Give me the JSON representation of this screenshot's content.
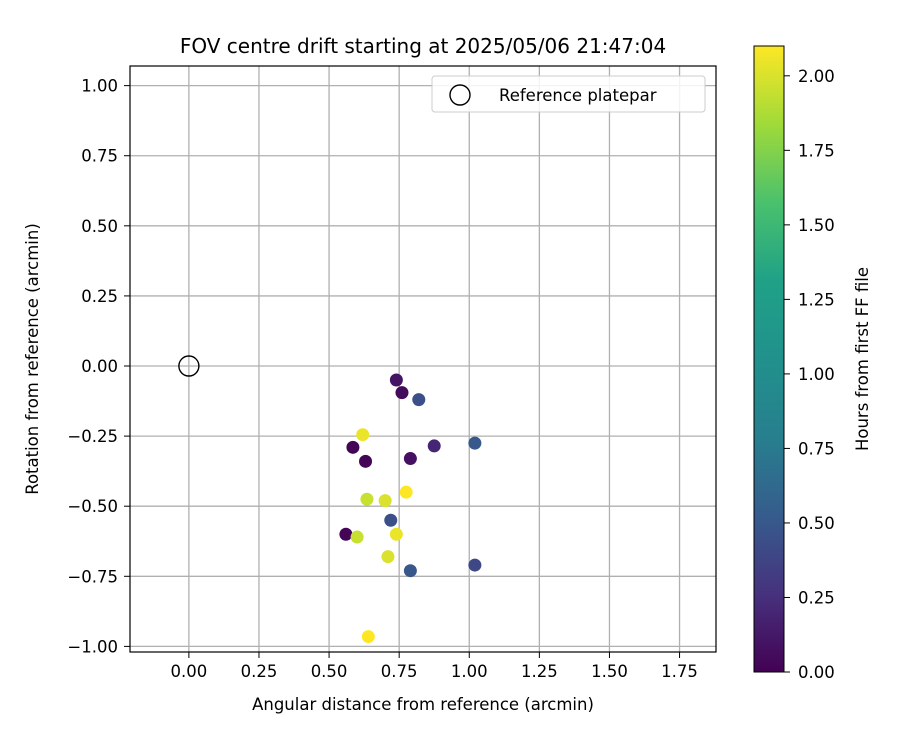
{
  "chart_data": {
    "type": "scatter",
    "title": "FOV centre drift starting at 2025/05/06 21:47:04",
    "xlabel": "Angular distance from reference (arcmin)",
    "ylabel": "Rotation from reference (arcmin)",
    "xlim": [
      -0.21,
      1.88
    ],
    "ylim": [
      -1.02,
      1.07
    ],
    "xticks": [
      0.0,
      0.25,
      0.5,
      0.75,
      1.0,
      1.25,
      1.5,
      1.75
    ],
    "xtick_labels": [
      "0.00",
      "0.25",
      "0.50",
      "0.75",
      "1.00",
      "1.25",
      "1.50",
      "1.75"
    ],
    "yticks": [
      -1.0,
      -0.75,
      -0.5,
      -0.25,
      0.0,
      0.25,
      0.5,
      0.75,
      1.0
    ],
    "ytick_labels": [
      "−1.00",
      "−0.75",
      "−0.50",
      "−0.25",
      "0.00",
      "0.25",
      "0.50",
      "0.75",
      "1.00"
    ],
    "grid": true,
    "legend": {
      "position": "top-right",
      "entries": [
        {
          "label": "Reference platepar",
          "marker": "open-circle"
        }
      ]
    },
    "reference_point": {
      "x": 0.0,
      "y": 0.0
    },
    "colorbar": {
      "label": "Hours from first FF file",
      "colormap": "viridis",
      "range": [
        0.0,
        2.1
      ],
      "ticks": [
        0.0,
        0.25,
        0.5,
        0.75,
        1.0,
        1.25,
        1.5,
        1.75,
        2.0
      ],
      "tick_labels": [
        "0.00",
        "0.25",
        "0.50",
        "0.75",
        "1.00",
        "1.25",
        "1.50",
        "1.75",
        "2.00"
      ]
    },
    "points": [
      {
        "x": 0.74,
        "y": -0.05,
        "hours": 0.1
      },
      {
        "x": 0.76,
        "y": -0.095,
        "hours": 0.05
      },
      {
        "x": 0.82,
        "y": -0.12,
        "hours": 0.45
      },
      {
        "x": 0.585,
        "y": -0.29,
        "hours": 0.02
      },
      {
        "x": 0.63,
        "y": -0.34,
        "hours": 0.02
      },
      {
        "x": 0.79,
        "y": -0.33,
        "hours": 0.08
      },
      {
        "x": 0.875,
        "y": -0.285,
        "hours": 0.2
      },
      {
        "x": 1.02,
        "y": -0.275,
        "hours": 0.5
      },
      {
        "x": 0.62,
        "y": -0.245,
        "hours": 2.05
      },
      {
        "x": 0.635,
        "y": -0.475,
        "hours": 1.95
      },
      {
        "x": 0.7,
        "y": -0.48,
        "hours": 2.0
      },
      {
        "x": 0.775,
        "y": -0.45,
        "hours": 2.1
      },
      {
        "x": 0.72,
        "y": -0.55,
        "hours": 0.45
      },
      {
        "x": 0.56,
        "y": -0.6,
        "hours": 0.02
      },
      {
        "x": 0.6,
        "y": -0.61,
        "hours": 1.95
      },
      {
        "x": 0.74,
        "y": -0.6,
        "hours": 2.05
      },
      {
        "x": 0.71,
        "y": -0.68,
        "hours": 2.0
      },
      {
        "x": 0.79,
        "y": -0.73,
        "hours": 0.5
      },
      {
        "x": 1.02,
        "y": -0.71,
        "hours": 0.4
      },
      {
        "x": 0.64,
        "y": -0.965,
        "hours": 2.1
      }
    ]
  }
}
